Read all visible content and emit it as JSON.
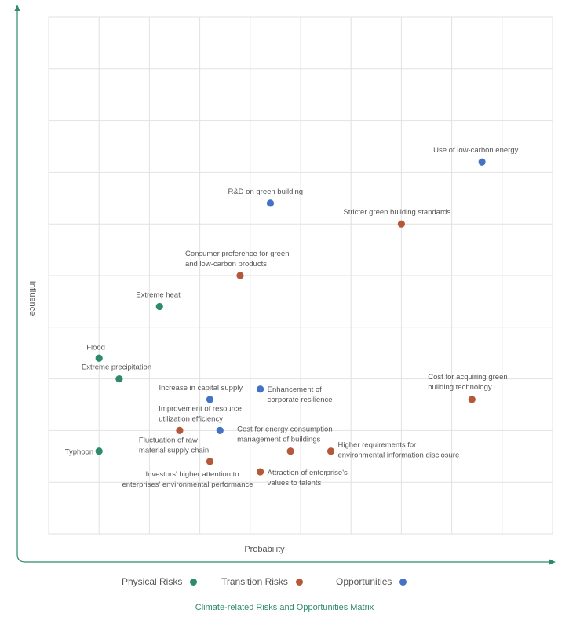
{
  "colors": {
    "physical": "#2e8b6a",
    "transition": "#b5583a",
    "opportunities": "#4472c4",
    "axis": "#2e8b6a",
    "grid": "#e2e2e2"
  },
  "chart_data": {
    "type": "scatter",
    "title": "Climate-related Risks and Opportunities Matrix",
    "xlabel": "Probability",
    "ylabel": "Influence",
    "xlim": [
      0,
      10
    ],
    "ylim": [
      0,
      10
    ],
    "grid": true,
    "legend_position": "bottom",
    "series": [
      {
        "name": "Physical Risks",
        "color_key": "physical",
        "points": [
          {
            "label": "Typhoon",
            "x": 1.0,
            "y": 1.6
          },
          {
            "label": "Flood",
            "x": 1.0,
            "y": 3.4
          },
          {
            "label": "Extreme precipitation",
            "x": 1.4,
            "y": 3.0
          },
          {
            "label": "Extreme heat",
            "x": 2.2,
            "y": 4.4
          }
        ]
      },
      {
        "name": "Transition Risks",
        "color_key": "transition",
        "points": [
          {
            "label": "Fluctuation of raw material supply chain",
            "x": 2.6,
            "y": 2.0
          },
          {
            "label": "Investors' higher attention to enterprises' environmental performance",
            "x": 3.2,
            "y": 1.4
          },
          {
            "label": "Consumer preference for green and low-carbon products",
            "x": 3.8,
            "y": 5.0
          },
          {
            "label": "Attraction of enterprise's values to talents",
            "x": 4.2,
            "y": 1.2
          },
          {
            "label": "Cost for energy consumption management of buildings",
            "x": 4.8,
            "y": 1.6
          },
          {
            "label": "Higher requirements for environmental information disclosure",
            "x": 5.6,
            "y": 1.6
          },
          {
            "label": "Stricter green building standards",
            "x": 7.0,
            "y": 6.0
          },
          {
            "label": "Cost for acquiring green building technology",
            "x": 8.4,
            "y": 2.6
          }
        ]
      },
      {
        "name": "Opportunities",
        "color_key": "opportunities",
        "points": [
          {
            "label": "Increase in capital supply",
            "x": 3.2,
            "y": 2.6
          },
          {
            "label": "Improvement of resource utilization efficiency",
            "x": 3.4,
            "y": 2.0
          },
          {
            "label": "Enhancement of corporate resilience",
            "x": 4.2,
            "y": 2.8
          },
          {
            "label": "R&D on green building",
            "x": 4.4,
            "y": 6.4
          },
          {
            "label": "Use of low-carbon energy",
            "x": 8.6,
            "y": 7.2
          }
        ]
      }
    ]
  }
}
